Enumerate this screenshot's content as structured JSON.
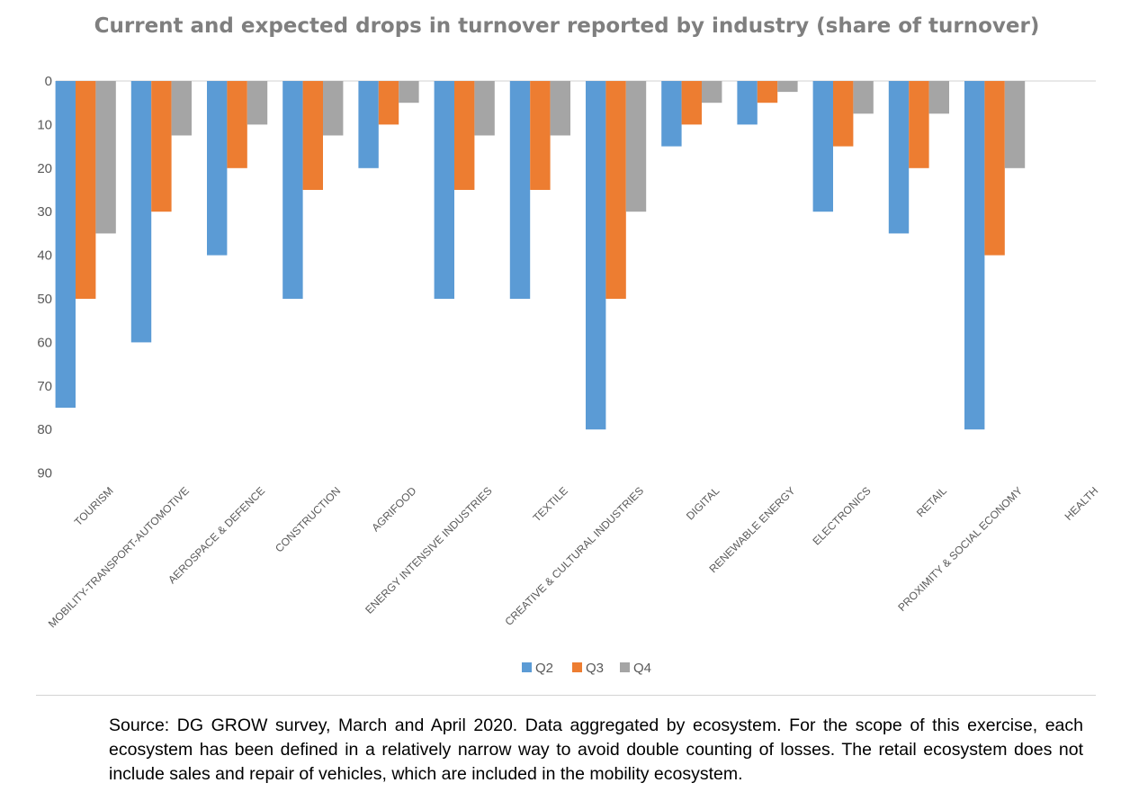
{
  "chart_data": {
    "type": "bar",
    "title": "Current and expected drops in turnover reported by industry (share of turnover)",
    "categories": [
      "TOURISM",
      "MOBILITY-TRANSPORT-AUTOMOTIVE",
      "AEROSPACE & DEFENCE",
      "CONSTRUCTION",
      "AGRIFOOD",
      "ENERGY INTENSIVE INDUSTRIES",
      "TEXTILE",
      "CREATIVE & CULTURAL INDUSTRIES",
      "DIGITAL",
      "RENEWABLE ENERGY",
      "ELECTRONICS",
      "RETAIL",
      "PROXIMITY & SOCIAL ECONOMY",
      "HEALTH"
    ],
    "series": [
      {
        "name": "Q2",
        "color": "#5b9bd5",
        "values": [
          75,
          60,
          40,
          50,
          20,
          50,
          50,
          80,
          15,
          10,
          30,
          35,
          80,
          0
        ]
      },
      {
        "name": "Q3",
        "color": "#ed7d31",
        "values": [
          50,
          30,
          20,
          25,
          10,
          25,
          25,
          50,
          10,
          5,
          15,
          20,
          40,
          0
        ]
      },
      {
        "name": "Q4",
        "color": "#a5a5a5",
        "values": [
          35,
          12.5,
          10,
          12.5,
          5,
          12.5,
          12.5,
          30,
          5,
          2.5,
          7.5,
          7.5,
          20,
          0
        ]
      }
    ],
    "y_ticks": [
      "0",
      "10",
      "20",
      "30",
      "40",
      "50",
      "60",
      "70",
      "80",
      "90"
    ],
    "ylim": [
      0,
      90
    ],
    "y_axis_reversed": true,
    "legend_position": "bottom",
    "grid": false
  },
  "source_note": "Source: DG GROW survey, March and April 2020. Data aggregated by ecosystem. For the scope of this exercise, each ecosystem has been defined in a relatively narrow way to avoid double counting of losses. The retail ecosystem does not include sales and repair of vehicles, which are included in the mobility ecosystem."
}
